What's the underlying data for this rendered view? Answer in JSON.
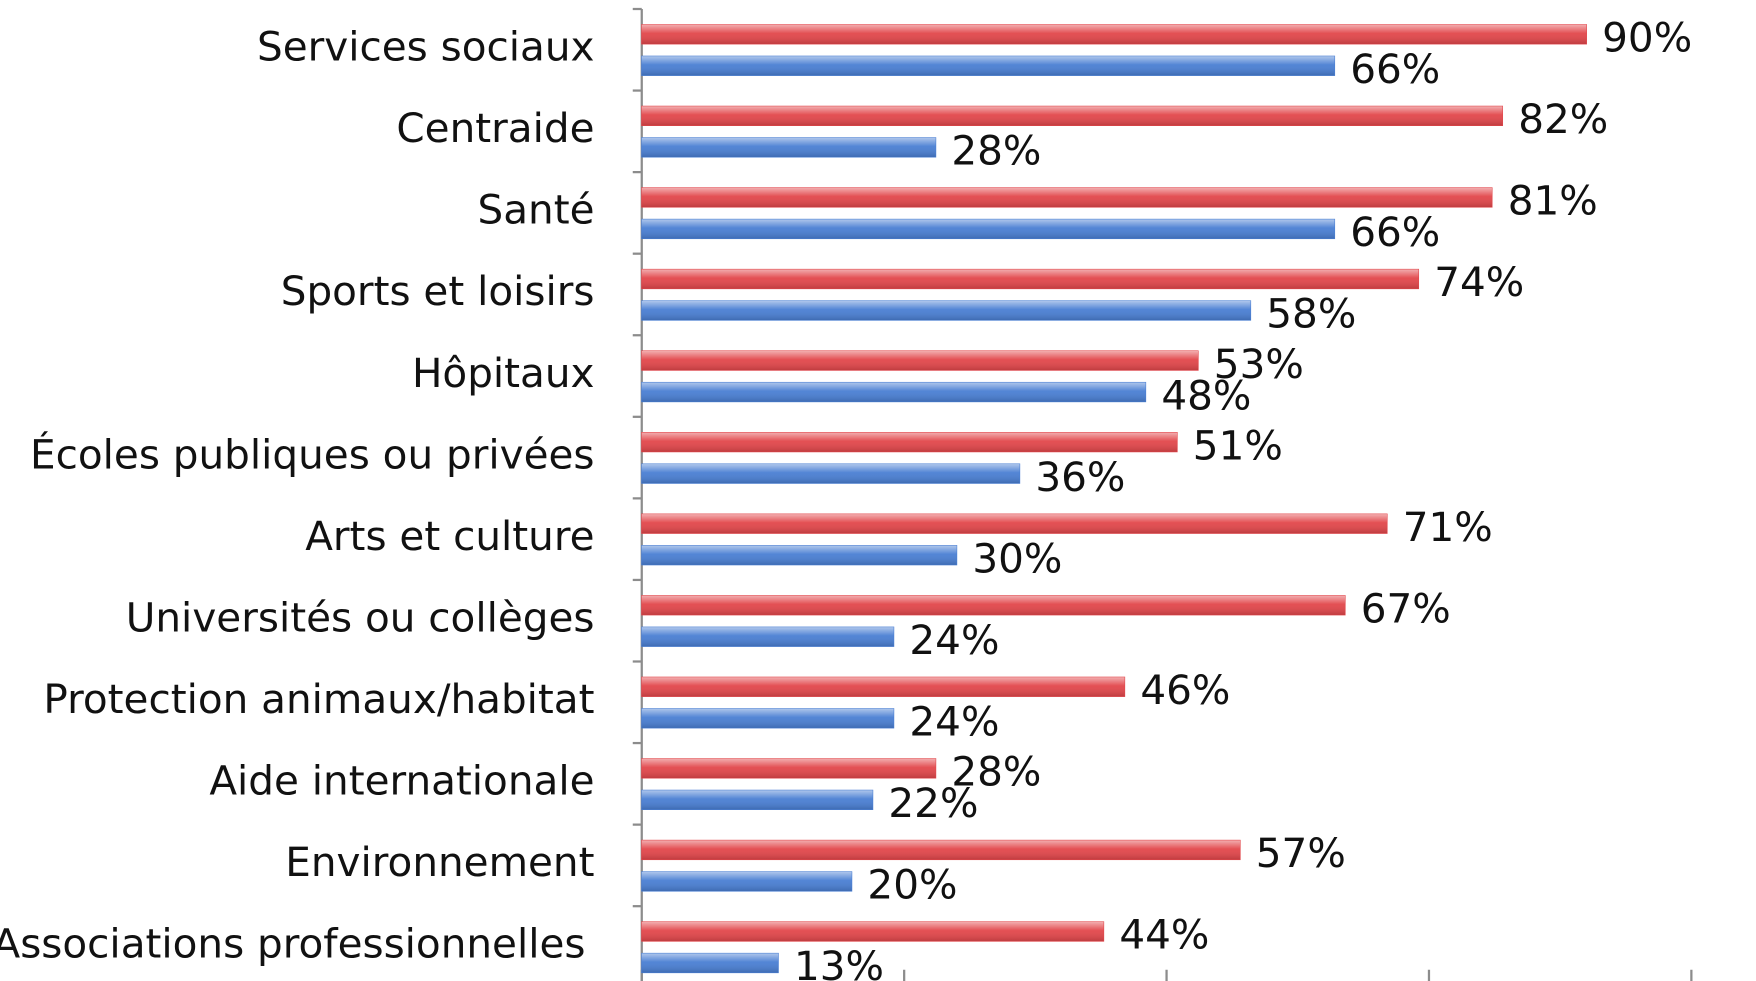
{
  "chart_data": {
    "type": "barh",
    "categories": [
      "Services sociaux",
      "Centraide",
      "Santé",
      "Sports et loisirs",
      "Hôpitaux",
      "Écoles publiques ou privées",
      "Arts et culture",
      "Universités ou collèges",
      "Protection animaux/habitat",
      "Aide internationale",
      "Environnement",
      "Associations professionnelles"
    ],
    "series": [
      {
        "color": "#e2474b",
        "values": [
          90,
          82,
          81,
          74,
          53,
          51,
          71,
          67,
          46,
          28,
          57,
          44
        ],
        "value_labels": [
          "90%",
          "82%",
          "81%",
          "74%",
          "53%",
          "51%",
          "71%",
          "67%",
          "46%",
          "28%",
          "57%",
          "44%"
        ]
      },
      {
        "color": "#4a7fd3",
        "values": [
          66,
          28,
          66,
          58,
          48,
          36,
          30,
          24,
          24,
          22,
          20,
          13
        ],
        "value_labels": [
          "66%",
          "28%",
          "66%",
          "58%",
          "48%",
          "36%",
          "30%",
          "24%",
          "24%",
          "22%",
          "20%",
          "13%"
        ]
      }
    ],
    "xlim": [
      0,
      100
    ],
    "xticks": [
      0,
      25,
      50,
      75,
      100
    ]
  }
}
